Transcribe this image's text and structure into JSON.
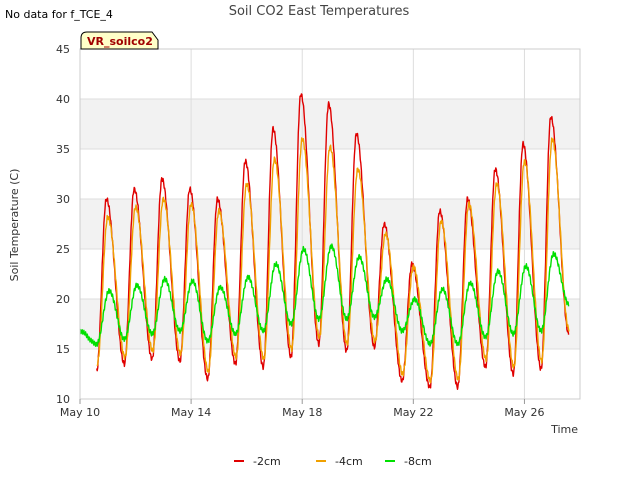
{
  "no_data_note": "No data for f_TCE_4",
  "badge_label": "VR_soilco2",
  "chart_data": {
    "type": "line",
    "title": "Soil CO2 East Temperatures",
    "xlabel": "Time",
    "ylabel": "Soil Temperature (C)",
    "ylim": [
      10,
      45
    ],
    "yticks": [
      10,
      15,
      20,
      25,
      30,
      35,
      40,
      45
    ],
    "xlim_days": [
      0,
      18
    ],
    "xticks": [
      {
        "day": 0,
        "label": "May 10"
      },
      {
        "day": 4,
        "label": "May 14"
      },
      {
        "day": 8,
        "label": "May 18"
      },
      {
        "day": 12,
        "label": "May 22"
      },
      {
        "day": 16,
        "label": "May 26"
      }
    ],
    "grid": true,
    "alternating_bands": true,
    "legend_position": "bottom-center",
    "series": [
      {
        "name": "-2cm",
        "color": "#e00000",
        "cycles": [
          {
            "min_day": 0.6,
            "min": 12.8,
            "max_day": 0.95,
            "max": 30.0
          },
          {
            "min_day": 1.6,
            "min": 13.5,
            "max_day": 1.95,
            "max": 31.0
          },
          {
            "min_day": 2.6,
            "min": 14.0,
            "max_day": 2.95,
            "max": 32.0
          },
          {
            "min_day": 3.6,
            "min": 13.8,
            "max_day": 3.95,
            "max": 31.0
          },
          {
            "min_day": 4.6,
            "min": 12.0,
            "max_day": 4.95,
            "max": 30.0
          },
          {
            "min_day": 5.6,
            "min": 13.5,
            "max_day": 5.95,
            "max": 33.8
          },
          {
            "min_day": 6.6,
            "min": 13.2,
            "max_day": 6.95,
            "max": 37.0
          },
          {
            "min_day": 7.6,
            "min": 14.2,
            "max_day": 7.95,
            "max": 40.5
          },
          {
            "min_day": 8.6,
            "min": 15.5,
            "max_day": 8.95,
            "max": 39.5
          },
          {
            "min_day": 9.6,
            "min": 14.8,
            "max_day": 9.95,
            "max": 36.5
          },
          {
            "min_day": 10.6,
            "min": 15.2,
            "max_day": 10.95,
            "max": 27.5
          },
          {
            "min_day": 11.6,
            "min": 11.8,
            "max_day": 11.95,
            "max": 23.5
          },
          {
            "min_day": 12.6,
            "min": 11.2,
            "max_day": 12.95,
            "max": 28.8
          },
          {
            "min_day": 13.6,
            "min": 11.2,
            "max_day": 13.95,
            "max": 30.0
          },
          {
            "min_day": 14.6,
            "min": 13.2,
            "max_day": 14.95,
            "max": 33.0
          },
          {
            "min_day": 15.6,
            "min": 12.5,
            "max_day": 15.95,
            "max": 35.5
          },
          {
            "min_day": 16.6,
            "min": 13.0,
            "max_day": 16.95,
            "max": 38.2
          },
          {
            "min_day": 17.6,
            "min": 16.5,
            "max_day": 17.6,
            "max": 16.5
          }
        ]
      },
      {
        "name": "-4cm",
        "color": "#f0a000",
        "cycles": [
          {
            "min_day": 0.62,
            "min": 13.5,
            "max_day": 1.0,
            "max": 28.2
          },
          {
            "min_day": 1.62,
            "min": 14.2,
            "max_day": 2.0,
            "max": 29.2
          },
          {
            "min_day": 2.62,
            "min": 14.8,
            "max_day": 3.0,
            "max": 30.0
          },
          {
            "min_day": 3.62,
            "min": 14.5,
            "max_day": 4.0,
            "max": 29.5
          },
          {
            "min_day": 4.62,
            "min": 12.8,
            "max_day": 5.0,
            "max": 28.8
          },
          {
            "min_day": 5.62,
            "min": 14.2,
            "max_day": 6.0,
            "max": 31.5
          },
          {
            "min_day": 6.62,
            "min": 14.0,
            "max_day": 7.0,
            "max": 34.0
          },
          {
            "min_day": 7.62,
            "min": 15.0,
            "max_day": 8.0,
            "max": 36.0
          },
          {
            "min_day": 8.62,
            "min": 16.2,
            "max_day": 9.0,
            "max": 35.2
          },
          {
            "min_day": 9.62,
            "min": 15.5,
            "max_day": 10.0,
            "max": 33.0
          },
          {
            "min_day": 10.62,
            "min": 15.8,
            "max_day": 11.0,
            "max": 26.5
          },
          {
            "min_day": 11.62,
            "min": 12.5,
            "max_day": 12.0,
            "max": 23.2
          },
          {
            "min_day": 12.62,
            "min": 11.8,
            "max_day": 13.0,
            "max": 27.8
          },
          {
            "min_day": 13.62,
            "min": 12.0,
            "max_day": 14.0,
            "max": 29.5
          },
          {
            "min_day": 14.62,
            "min": 14.0,
            "max_day": 15.0,
            "max": 31.5
          },
          {
            "min_day": 15.62,
            "min": 13.2,
            "max_day": 16.0,
            "max": 33.8
          },
          {
            "min_day": 16.62,
            "min": 13.8,
            "max_day": 17.0,
            "max": 36.0
          },
          {
            "min_day": 17.6,
            "min": 17.0,
            "max_day": 17.6,
            "max": 17.0
          }
        ]
      },
      {
        "name": "-8cm",
        "color": "#00e000",
        "cycles": [
          {
            "min_day": 0.0,
            "min": 16.8,
            "max_day": 0.0,
            "max": 16.8
          },
          {
            "min_day": 0.6,
            "min": 15.5,
            "max_day": 1.05,
            "max": 20.8
          },
          {
            "min_day": 1.6,
            "min": 16.0,
            "max_day": 2.05,
            "max": 21.4
          },
          {
            "min_day": 2.6,
            "min": 16.5,
            "max_day": 3.05,
            "max": 22.0
          },
          {
            "min_day": 3.6,
            "min": 16.8,
            "max_day": 4.05,
            "max": 21.8
          },
          {
            "min_day": 4.6,
            "min": 15.8,
            "max_day": 5.05,
            "max": 21.2
          },
          {
            "min_day": 5.6,
            "min": 16.5,
            "max_day": 6.05,
            "max": 22.2
          },
          {
            "min_day": 6.6,
            "min": 16.8,
            "max_day": 7.05,
            "max": 23.5
          },
          {
            "min_day": 7.6,
            "min": 17.5,
            "max_day": 8.05,
            "max": 25.0
          },
          {
            "min_day": 8.6,
            "min": 18.0,
            "max_day": 9.05,
            "max": 25.3
          },
          {
            "min_day": 9.6,
            "min": 18.0,
            "max_day": 10.05,
            "max": 24.2
          },
          {
            "min_day": 10.6,
            "min": 18.2,
            "max_day": 11.05,
            "max": 22.0
          },
          {
            "min_day": 11.6,
            "min": 16.8,
            "max_day": 12.05,
            "max": 20.0
          },
          {
            "min_day": 12.6,
            "min": 15.5,
            "max_day": 13.05,
            "max": 21.0
          },
          {
            "min_day": 13.6,
            "min": 15.5,
            "max_day": 14.05,
            "max": 21.6
          },
          {
            "min_day": 14.6,
            "min": 16.2,
            "max_day": 15.05,
            "max": 22.8
          },
          {
            "min_day": 15.6,
            "min": 16.5,
            "max_day": 16.05,
            "max": 23.3
          },
          {
            "min_day": 16.6,
            "min": 16.8,
            "max_day": 17.05,
            "max": 24.5
          },
          {
            "min_day": 17.6,
            "min": 19.5,
            "max_day": 17.6,
            "max": 19.5
          }
        ]
      }
    ]
  }
}
